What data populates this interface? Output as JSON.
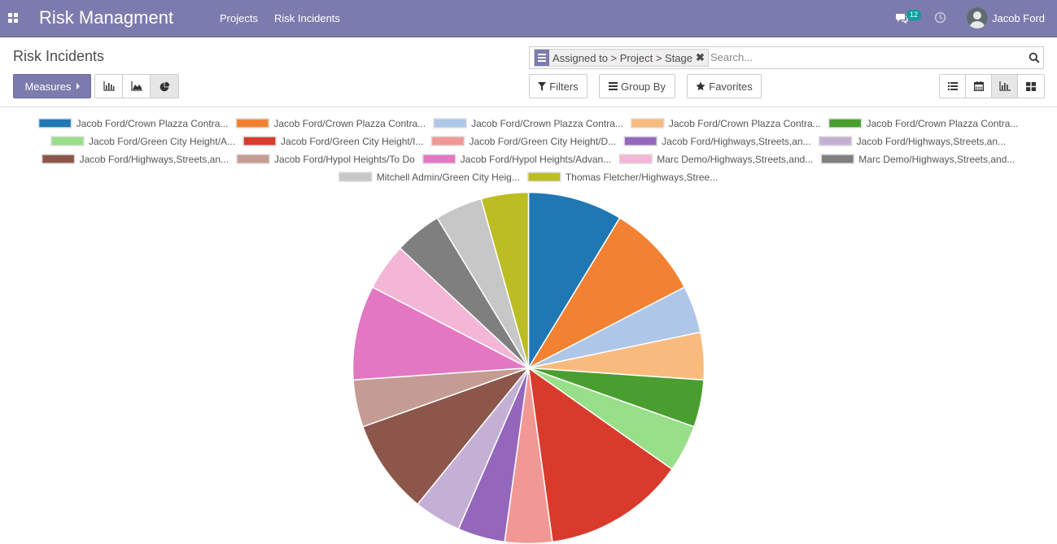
{
  "navbar": {
    "app_title": "Risk Managment",
    "menu": [
      "Projects",
      "Risk Incidents"
    ],
    "messages_count": "12",
    "user_name": "Jacob Ford"
  },
  "control_panel": {
    "title": "Risk Incidents",
    "facet_label": "Assigned to > Project > Stage",
    "search_placeholder": "Search...",
    "measures_label": "Measures",
    "filters_label": "Filters",
    "groupby_label": "Group By",
    "favorites_label": "Favorites"
  },
  "chart_data": {
    "type": "pie",
    "series": [
      {
        "label": "Jacob Ford/Crown Plazza Contra...",
        "value": 2,
        "color": "#1f77b4"
      },
      {
        "label": "Jacob Ford/Crown Plazza Contra...",
        "value": 2,
        "color": "#f28131"
      },
      {
        "label": "Jacob Ford/Crown Plazza Contra...",
        "value": 1,
        "color": "#aec7e8"
      },
      {
        "label": "Jacob Ford/Crown Plazza Contra...",
        "value": 1,
        "color": "#f9bb7d"
      },
      {
        "label": "Jacob Ford/Crown Plazza Contra...",
        "value": 1,
        "color": "#4a9e2f"
      },
      {
        "label": "Jacob Ford/Green City Height/A...",
        "value": 1,
        "color": "#98df8a"
      },
      {
        "label": "Jacob Ford/Green City Height/I...",
        "value": 3,
        "color": "#d83b2b"
      },
      {
        "label": "Jacob Ford/Green City Height/D...",
        "value": 1,
        "color": "#f29894"
      },
      {
        "label": "Jacob Ford/Highways,Streets,an...",
        "value": 1,
        "color": "#9467bd"
      },
      {
        "label": "Jacob Ford/Highways,Streets,an...",
        "value": 1,
        "color": "#c5b0d5"
      },
      {
        "label": "Jacob Ford/Highways,Streets,an...",
        "value": 2,
        "color": "#8c564b"
      },
      {
        "label": "Jacob Ford/Hypol Heights/To Do",
        "value": 1,
        "color": "#c49c94"
      },
      {
        "label": "Jacob Ford/Hypol Heights/Advan...",
        "value": 2,
        "color": "#e377c2"
      },
      {
        "label": "Marc Demo/Highways,Streets,and...",
        "value": 1,
        "color": "#f4b6d6"
      },
      {
        "label": "Marc Demo/Highways,Streets,and...",
        "value": 1,
        "color": "#7f7f7f"
      },
      {
        "label": "Mitchell Admin/Green City Heig...",
        "value": 1,
        "color": "#c7c7c7"
      },
      {
        "label": "Thomas Fletcher/Highways,Stree...",
        "value": 1,
        "color": "#bcbd22"
      }
    ],
    "legend_position": "top",
    "grid": false
  }
}
